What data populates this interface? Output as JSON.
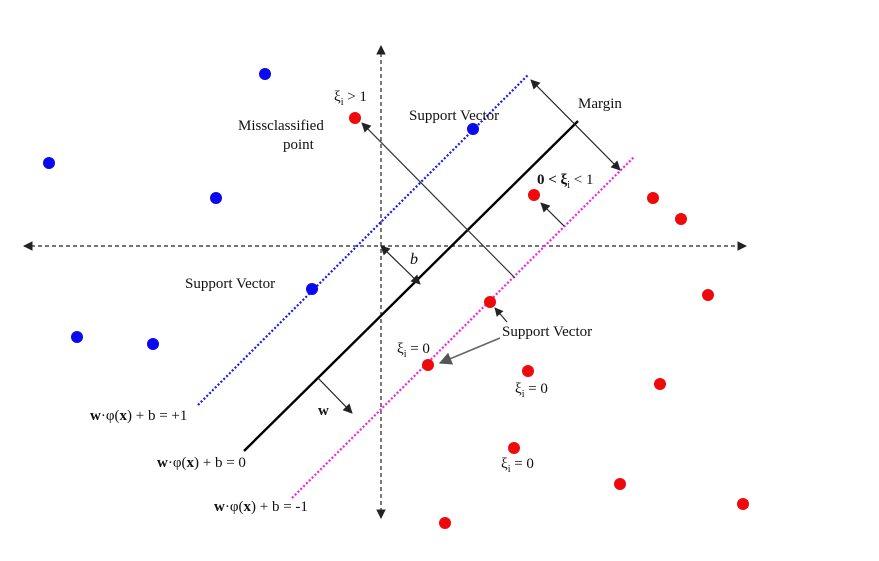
{
  "diagram": {
    "labels": {
      "margin": "Margin",
      "misclassified_line1": "Missclassified",
      "misclassified_line2": "point",
      "support_vector_top": "Support Vector",
      "support_vector_left": "Support Vector",
      "support_vector_right": "Support Vector",
      "b": "b",
      "w": "w",
      "xi_gt1": "ξ",
      "xi_gt1_rest": " > 1",
      "xi_between_pre": "0 < ξ",
      "xi_between_post": " < 1",
      "xi_eq0_a": "ξ",
      "xi_eq0_a_rest": " = 0",
      "xi_eq0_b": "ξ",
      "xi_eq0_b_rest": " = 0",
      "xi_eq0_c": "ξ",
      "xi_eq0_c_rest": " = 0",
      "xi_sub": "i",
      "eq_plus_w": "w",
      "eq_plus_rest_1": "·φ(",
      "eq_plus_x": "x",
      "eq_plus_rest_2": ") + b = +1",
      "eq_zero_w": "w",
      "eq_zero_rest_1": "·φ(",
      "eq_zero_x": "x",
      "eq_zero_rest_2": ") + b = 0",
      "eq_minus_w": "w",
      "eq_minus_rest_1": "·φ(",
      "eq_minus_x": "x",
      "eq_minus_rest_2": ") + b = -1"
    },
    "colors": {
      "class_positive": "#0a0aee",
      "class_negative": "#ee0a0a",
      "margin_plus_line": "#1a1aee",
      "margin_minus_line": "#ee22ee",
      "hyperplane": "#000000"
    }
  }
}
